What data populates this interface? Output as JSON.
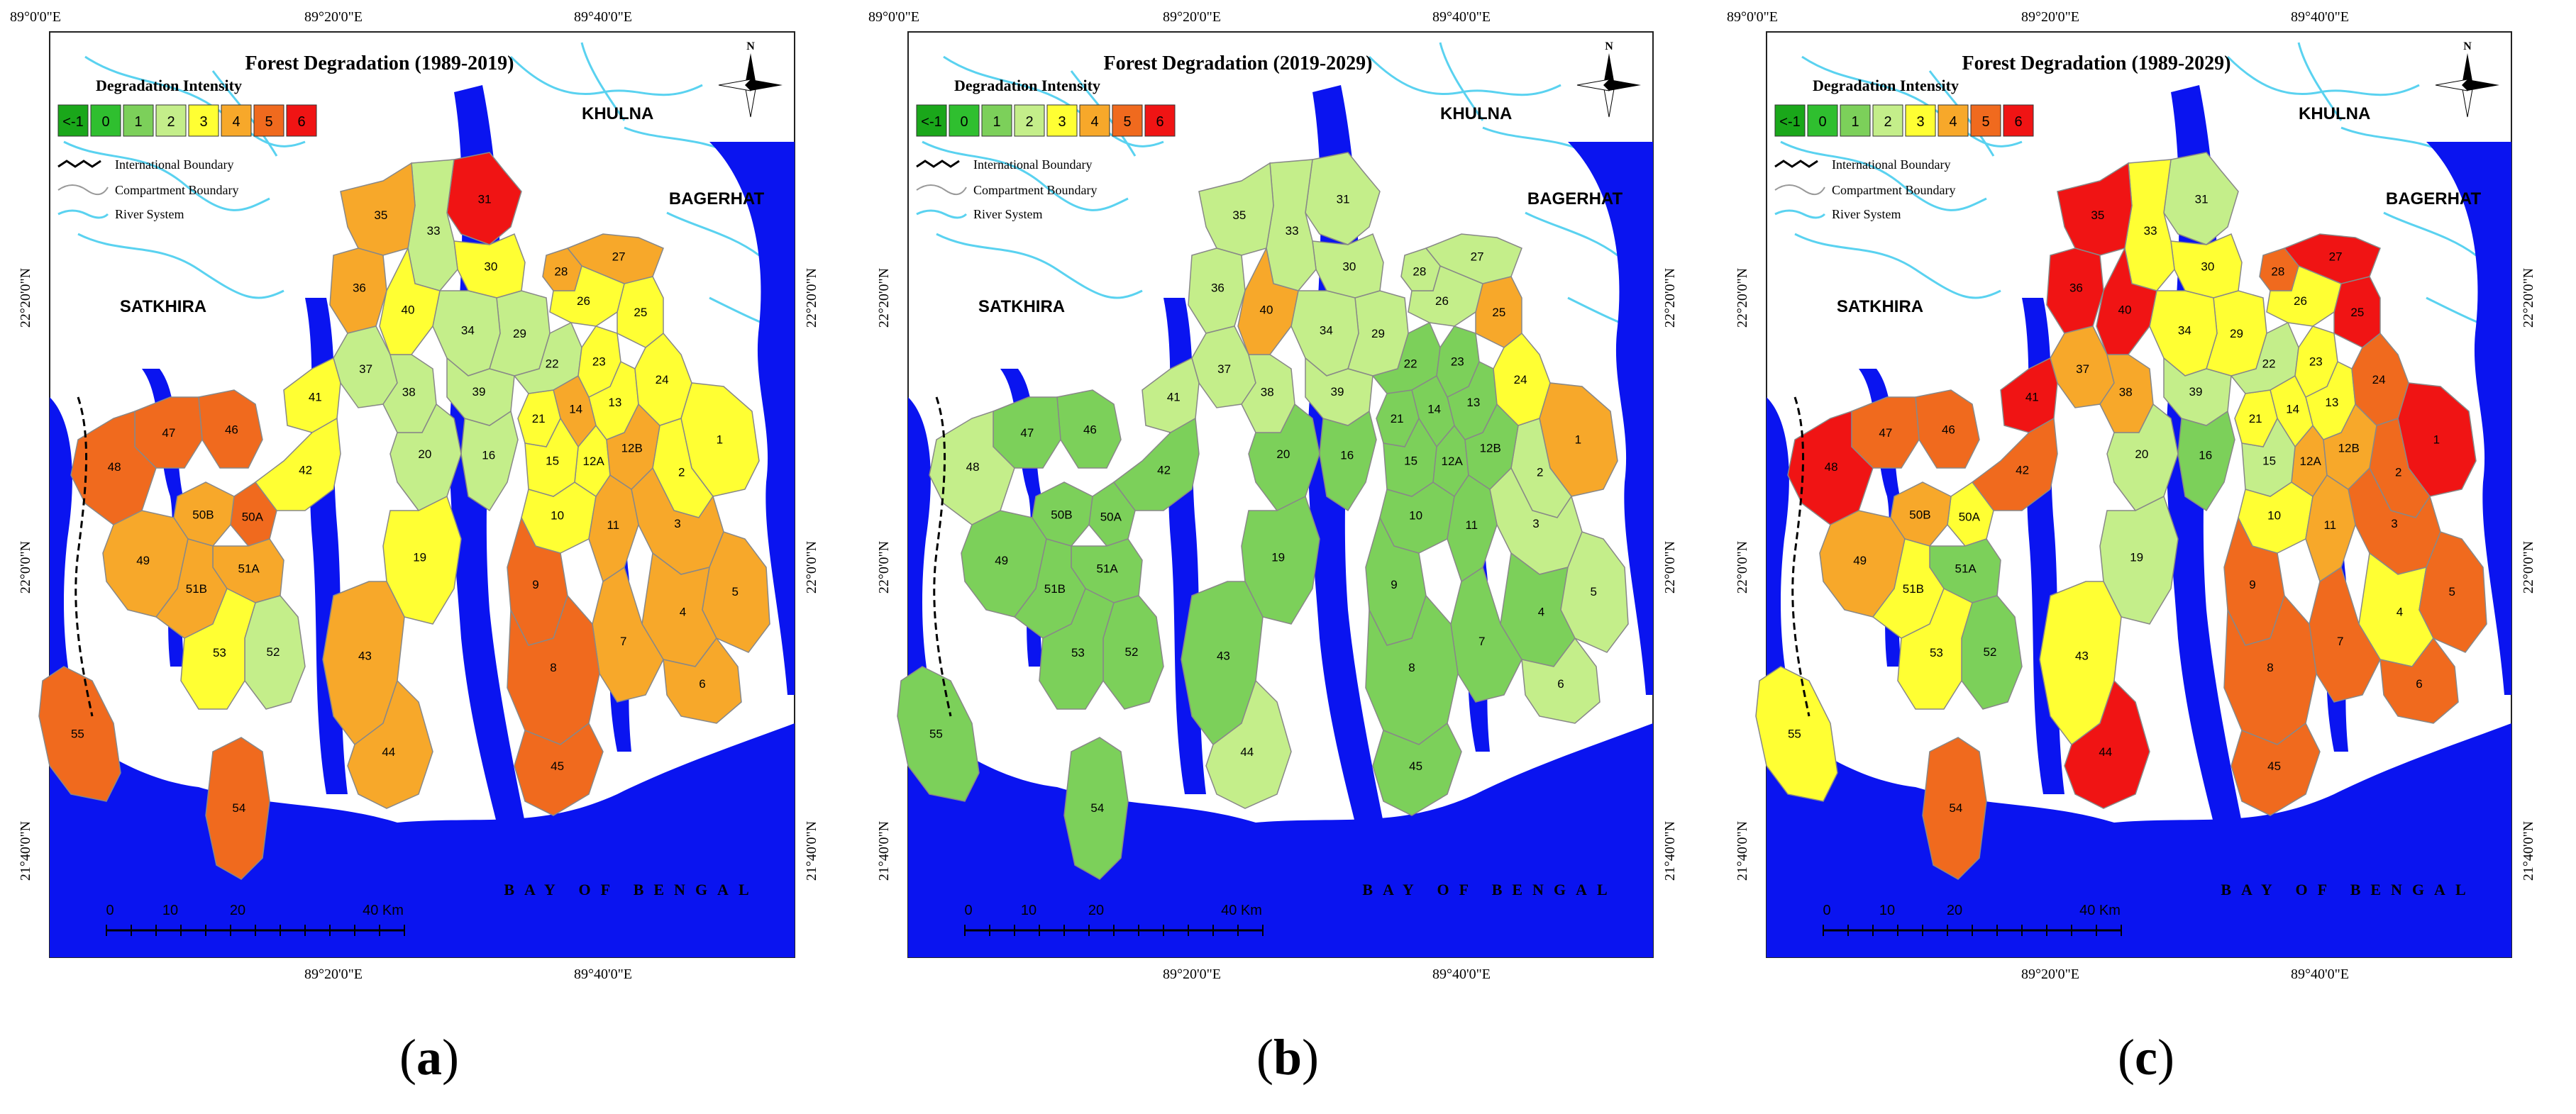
{
  "panels": [
    {
      "id": "a",
      "title": "Forest Degradation (1989-2019)",
      "caption_letter": "a",
      "palette": "mixed_a"
    },
    {
      "id": "b",
      "title": "Forest Degradation (2019-2029)",
      "caption_letter": "b",
      "palette": "green_b"
    },
    {
      "id": "c",
      "title": "Forest Degradation (1989-2029)",
      "caption_letter": "c",
      "palette": "red_c"
    }
  ],
  "legend": {
    "title": "Degradation Intensity",
    "classes": [
      {
        "label": "<-1",
        "color": "#1aa71a"
      },
      {
        "label": "0",
        "color": "#2fbf2f"
      },
      {
        "label": "1",
        "color": "#7cd05a"
      },
      {
        "label": "2",
        "color": "#c4ee8a"
      },
      {
        "label": "3",
        "color": "#ffff33"
      },
      {
        "label": "4",
        "color": "#f7a82a"
      },
      {
        "label": "5",
        "color": "#f06a1e"
      },
      {
        "label": "6",
        "color": "#f01414"
      }
    ],
    "lines": [
      "International Boundary",
      "Compartment Boundary",
      "River System"
    ]
  },
  "place_labels": {
    "khulna": "KHULNA",
    "bagerhat": "BAGERHAT",
    "satkhira": "SATKHIRA",
    "bay": "BAY OF BENGAL"
  },
  "coords": {
    "top": [
      "89°0'0\"E",
      "89°20'0\"E",
      "89°40'0\"E"
    ],
    "bottom": [
      "89°20'0\"E",
      "89°40'0\"E"
    ],
    "left": [
      "22°20'0\"N",
      "22°0'0\"N",
      "21°40'0\"N"
    ],
    "right": [
      "22°20'0\"N",
      "22°0'0\"N",
      "21°40'0\"N"
    ]
  },
  "scalebar": {
    "labels": [
      "0",
      "10",
      "20",
      "40 Km"
    ]
  },
  "compartments": [
    "1",
    "2",
    "3",
    "4",
    "5",
    "6",
    "7",
    "8",
    "9",
    "10",
    "11",
    "12A",
    "12B",
    "13",
    "14",
    "15",
    "16",
    "19",
    "20",
    "21",
    "22",
    "23",
    "24",
    "25",
    "26",
    "27",
    "28",
    "29",
    "30",
    "31",
    "33",
    "34",
    "35",
    "36",
    "37",
    "38",
    "39",
    "40",
    "41",
    "42",
    "43",
    "44",
    "45",
    "46",
    "47",
    "48",
    "49",
    "50A",
    "50B",
    "51A",
    "51B",
    "52",
    "53",
    "54",
    "55"
  ],
  "colors": {
    "sea": "#0a14f0",
    "land": "#ffffff",
    "river": "#5ad2f0",
    "boundary": "#888888"
  }
}
